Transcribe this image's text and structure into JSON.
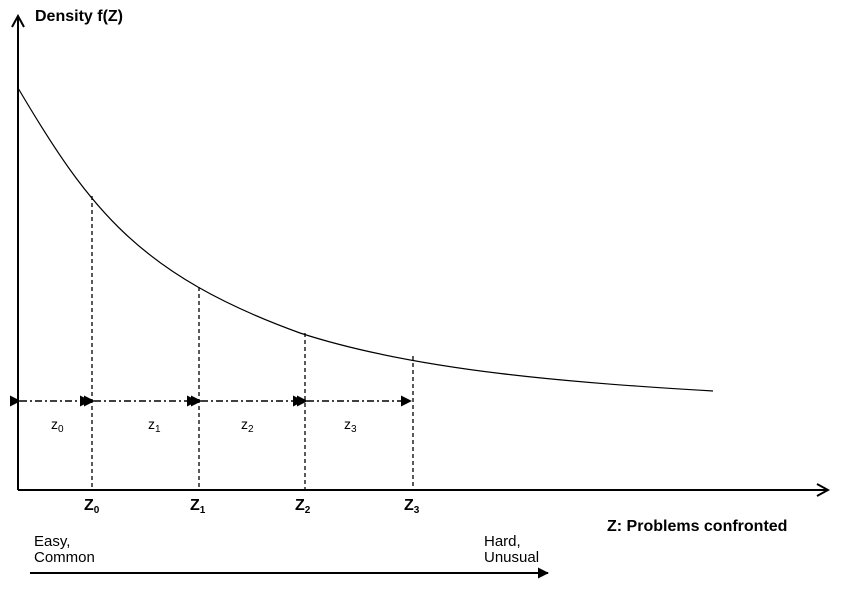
{
  "y_axis_label": "Density f(Z)",
  "x_axis_label": "Z: Problems confronted",
  "thresholds": [
    {
      "label": "Z",
      "sub": "0"
    },
    {
      "label": "Z",
      "sub": "1"
    },
    {
      "label": "Z",
      "sub": "2"
    },
    {
      "label": "Z",
      "sub": "3"
    }
  ],
  "segments": [
    {
      "label": "z",
      "sub": "0"
    },
    {
      "label": "z",
      "sub": "1"
    },
    {
      "label": "z",
      "sub": "2"
    },
    {
      "label": "z",
      "sub": "3"
    }
  ],
  "left_note": {
    "line1": "Easy,",
    "line2": "Common"
  },
  "right_note": {
    "line1": "Hard,",
    "line2": "Unusual"
  },
  "colors": {
    "ink": "#000000",
    "background": "#ffffff"
  }
}
